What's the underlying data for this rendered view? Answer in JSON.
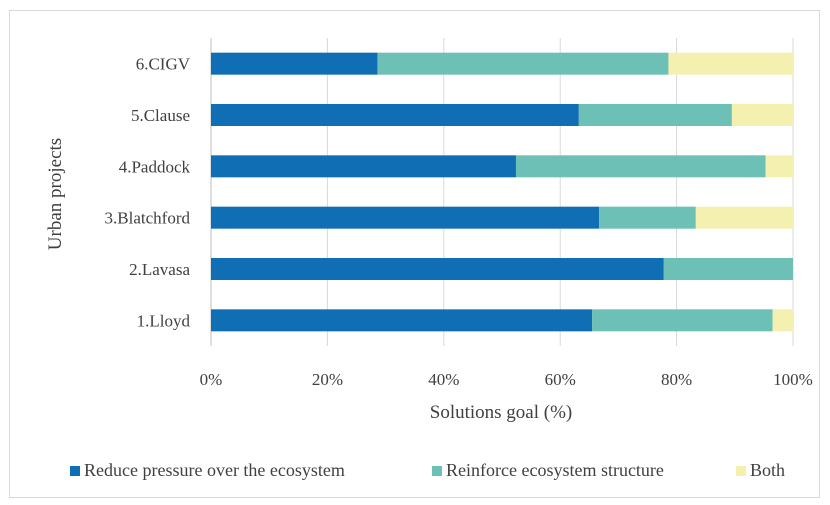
{
  "chart_data": {
    "type": "bar",
    "orientation": "horizontal",
    "stacked": "percent",
    "categories": [
      "1.Lloyd",
      "2.Lavasa",
      "3.Blatchford",
      "4.Paddock",
      "5.Clause",
      "6.CIGV"
    ],
    "series": [
      {
        "name": "Reduce pressure over the ecosystem",
        "color": "#0f6eb4",
        "values": [
          65.5,
          77.8,
          66.7,
          52.4,
          63.2,
          28.6
        ]
      },
      {
        "name": "Reinforce ecosystem structure",
        "color": "#6cc0b6",
        "values": [
          31.0,
          22.2,
          16.6,
          42.9,
          26.3,
          50.0
        ]
      },
      {
        "name": "Both",
        "color": "#f4f0b0",
        "values": [
          3.5,
          0.0,
          16.7,
          4.7,
          10.5,
          21.4
        ]
      }
    ],
    "xlabel": "Solutions goal (%)",
    "ylabel": "Urban projects",
    "xticks": [
      "0%",
      "20%",
      "40%",
      "60%",
      "80%",
      "100%"
    ],
    "xlim": [
      0,
      100
    ],
    "grid": "vertical",
    "legend": "bottom"
  }
}
